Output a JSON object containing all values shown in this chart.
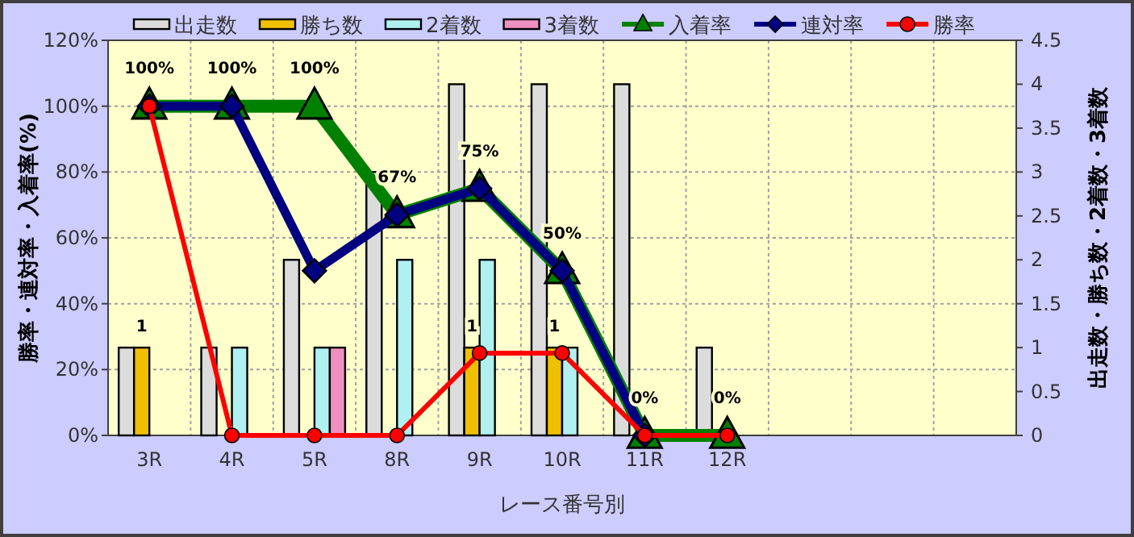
{
  "chart_data": {
    "type": "bar",
    "xlabel": "レース番号別",
    "ylabel": "勝率・連対率・入着率(%)",
    "y2label": "出走数・勝ち数・2着数・3着数",
    "categories": [
      "3R",
      "4R",
      "5R",
      "8R",
      "9R",
      "10R",
      "11R",
      "12R",
      null,
      null,
      null
    ],
    "series": [
      {
        "name": "出走数",
        "axis": "y2",
        "color": "#dcdcdc",
        "values": [
          1,
          1,
          2,
          3,
          4,
          4,
          4,
          1,
          null,
          null,
          null
        ]
      },
      {
        "name": "勝ち数",
        "axis": "y2",
        "color": "#f0c000",
        "values": [
          1,
          0,
          0,
          0,
          1,
          1,
          0,
          0,
          null,
          null,
          null
        ],
        "value_labels": [
          "1",
          null,
          null,
          null,
          "1",
          "1",
          null,
          null,
          null,
          null,
          null
        ]
      },
      {
        "name": "2着数",
        "axis": "y2",
        "color": "#b0f0f0",
        "values": [
          0,
          1,
          1,
          2,
          2,
          1,
          0,
          0,
          null,
          null,
          null
        ]
      },
      {
        "name": "3着数",
        "axis": "y2",
        "color": "#f090c0",
        "values": [
          0,
          0,
          1,
          0,
          0,
          0,
          0,
          0,
          null,
          null,
          null
        ]
      },
      {
        "name": "入着率",
        "type": "line",
        "marker": "triangle",
        "color": "#008000",
        "values": [
          100,
          100,
          100,
          67,
          75,
          50,
          0,
          0,
          null,
          null,
          null
        ],
        "value_labels": [
          "100%",
          "100%",
          "100%",
          "67%",
          "75%",
          "50%",
          "0%",
          "0%",
          null,
          null,
          null
        ]
      },
      {
        "name": "連対率",
        "type": "line",
        "marker": "diamond",
        "color": "#000080",
        "values": [
          100,
          100,
          50,
          67,
          75,
          50,
          0,
          null,
          null,
          null,
          null
        ]
      },
      {
        "name": "勝率",
        "type": "line",
        "marker": "circle",
        "color": "#ff0000",
        "values": [
          100,
          0,
          0,
          0,
          25,
          25,
          0,
          0,
          null,
          null,
          null
        ]
      }
    ],
    "ylim": [
      0,
      120
    ],
    "yticks": [
      {
        "value": 0,
        "label": "0%"
      },
      {
        "value": 20,
        "label": "20%"
      },
      {
        "value": 40,
        "label": "40%"
      },
      {
        "value": 60,
        "label": "60%"
      },
      {
        "value": 80,
        "label": "80%"
      },
      {
        "value": 100,
        "label": "100%"
      },
      {
        "value": 120,
        "label": "120%"
      }
    ],
    "y2lim": [
      0,
      4.5
    ],
    "y2ticks": [
      0,
      0.5,
      1,
      1.5,
      2,
      2.5,
      3,
      3.5,
      4,
      4.5
    ],
    "grid": true,
    "legend": "top"
  }
}
